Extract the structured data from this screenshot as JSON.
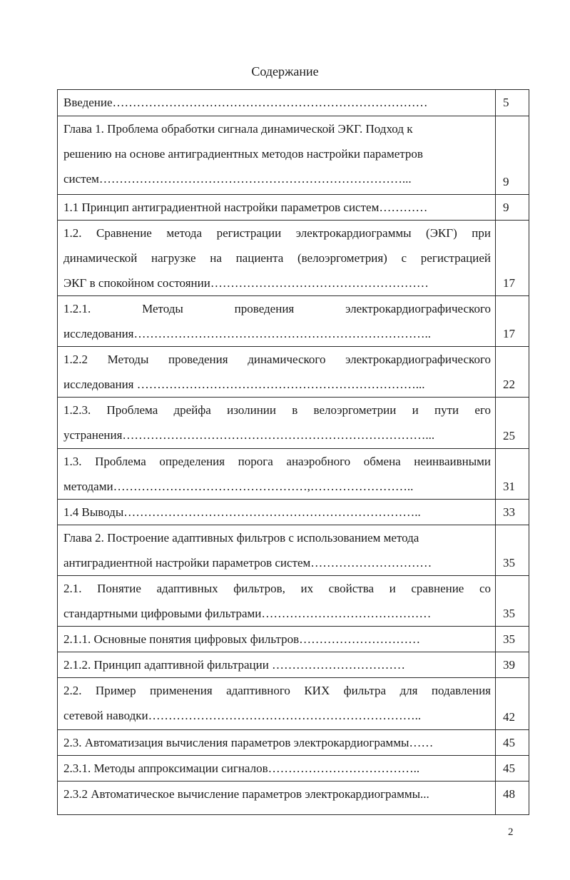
{
  "title": "Содержание",
  "page_number": "2",
  "entries": [
    {
      "lines": [
        "Введение……………………………………………………………………"
      ],
      "justify": [
        false
      ],
      "page": "5",
      "h": 37
    },
    {
      "lines": [
        "Глава 1. Проблема обработки сигнала динамической ЭКГ. Подход к",
        "решению на основе антиградиентных методов настройки параметров",
        "систем…………………………………………………………………..."
      ],
      "justify": [
        false,
        false,
        false
      ],
      "page": "9",
      "h": 110
    },
    {
      "lines": [
        "1.1 Принцип антиградиентной настройки параметров систем…………"
      ],
      "justify": [
        false
      ],
      "page": "9",
      "h": 30
    },
    {
      "lines": [
        "1.2. Сравнение метода регистрации электрокардиограммы (ЭКГ) при",
        "динамической нагрузке на пациента (велоэргометрия) с регистрацией",
        "ЭКГ в спокойном состоянии………………………………………………"
      ],
      "justify": [
        true,
        true,
        false
      ],
      "page": "17",
      "h": 104
    },
    {
      "lines": [
        "1.2.1. Методы проведения электрокардиографического",
        "исследования……………………………………………………………….."
      ],
      "justify": [
        true,
        false
      ],
      "page": "17",
      "h": 71
    },
    {
      "lines": [
        "1.2.2 Методы проведения динамического электрокардиографического",
        "исследования ……………………………………………………………..."
      ],
      "justify": [
        true,
        false
      ],
      "page": "22",
      "h": 71
    },
    {
      "lines": [
        "1.2.3. Проблема дрейфа изолинии в велоэргометрии и пути его",
        "устранения…………………………………………………………………..."
      ],
      "justify": [
        true,
        false
      ],
      "page": "25",
      "h": 72
    },
    {
      "lines": [
        "1.3. Проблема определения порога анаэробного обмена неинваивными",
        "методами…………………………………………,…………………….."
      ],
      "justify": [
        true,
        false
      ],
      "page": "31",
      "h": 70
    },
    {
      "lines": [
        "1.4 Выводы……………………………………………………………….."
      ],
      "justify": [
        false
      ],
      "page": "33",
      "h": 35
    },
    {
      "lines": [
        "Глава 2. Построение адаптивных фильтров с использованием метода",
        "антиградиентной настройки параметров систем…………………………"
      ],
      "justify": [
        false,
        false
      ],
      "page": "35",
      "h": 71
    },
    {
      "lines": [
        "2.1. Понятие адаптивных фильтров, их свойства и сравнение со",
        "стандартными цифровыми фильтрами……………………………………"
      ],
      "justify": [
        true,
        false
      ],
      "page": "35",
      "h": 71
    },
    {
      "lines": [
        "2.1.1. Основные понятия цифровых фильтров…………………………"
      ],
      "justify": [
        false
      ],
      "page": "35",
      "h": 35
    },
    {
      "lines": [
        "2.1.2. Принцип адаптивной фильтрации ……………………………"
      ],
      "justify": [
        false
      ],
      "page": "39",
      "h": 35
    },
    {
      "lines": [
        "2.2. Пример применения адаптивного КИХ фильтра для подавления",
        "сетевой наводки………………………………………………………….."
      ],
      "justify": [
        true,
        false
      ],
      "page": "42",
      "h": 73
    },
    {
      "lines": [
        "2.3. Автоматизация вычисления параметров электрокардиограммы……"
      ],
      "justify": [
        false
      ],
      "page": "45",
      "h": 35
    },
    {
      "lines": [
        "2.3.1. Методы аппроксимации сигналов……………………………….."
      ],
      "justify": [
        false
      ],
      "page": "45",
      "h": 35
    },
    {
      "lines": [
        "2.3.2 Автоматическое вычисление параметров электрокардиограммы..."
      ],
      "justify": [
        false
      ],
      "page": "48",
      "h": 47
    }
  ]
}
